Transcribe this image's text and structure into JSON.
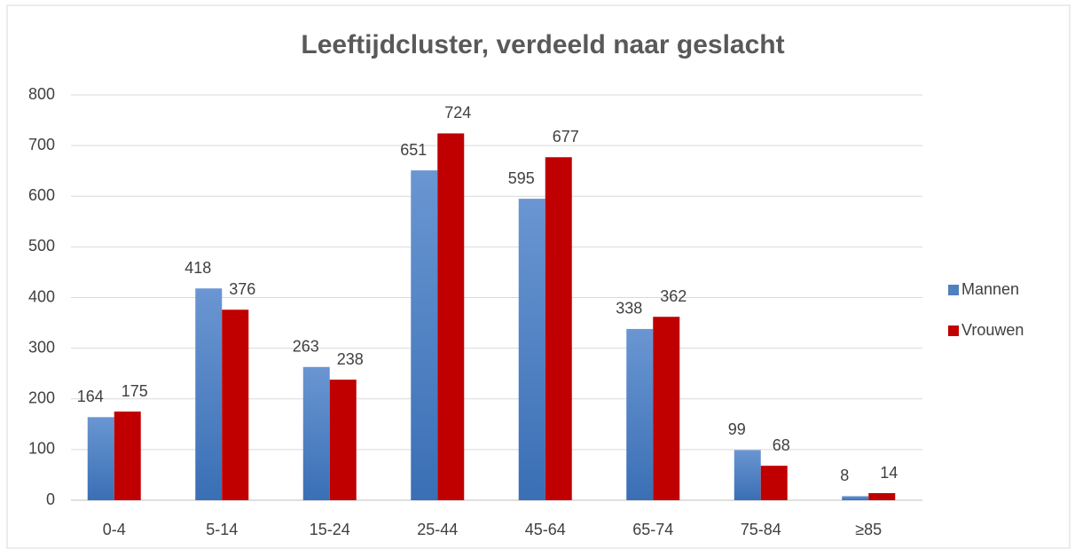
{
  "chart_data": {
    "type": "bar",
    "title": "Leeftijdcluster, verdeeld naar geslacht",
    "categories": [
      "0-4",
      "5-14",
      "15-24",
      "25-44",
      "45-64",
      "65-74",
      "75-84",
      "≥85"
    ],
    "series": [
      {
        "name": "Mannen",
        "color": "#4f81bd",
        "values": [
          164,
          418,
          263,
          651,
          595,
          338,
          99,
          8
        ]
      },
      {
        "name": "Vrouwen",
        "color": "#c00000",
        "values": [
          175,
          376,
          238,
          724,
          677,
          362,
          68,
          14
        ]
      }
    ],
    "ylim": [
      0,
      800
    ],
    "yticks": [
      0,
      100,
      200,
      300,
      400,
      500,
      600,
      700,
      800
    ],
    "grid": true,
    "legend": "right"
  }
}
